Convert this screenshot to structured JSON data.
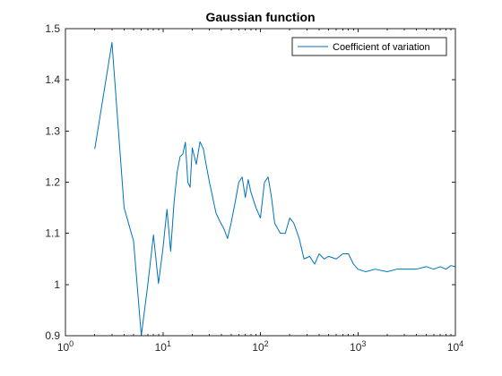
{
  "chart_data": {
    "type": "line",
    "title": "Gaussian function",
    "xlabel": "",
    "ylabel": "",
    "xscale": "log",
    "xlim": [
      1,
      10000
    ],
    "ylim": [
      0.9,
      1.5
    ],
    "x_ticks": [
      1,
      10,
      100,
      1000,
      10000
    ],
    "x_tick_labels": [
      {
        "base": "10",
        "exp": "0"
      },
      {
        "base": "10",
        "exp": "1"
      },
      {
        "base": "10",
        "exp": "2"
      },
      {
        "base": "10",
        "exp": "3"
      },
      {
        "base": "10",
        "exp": "4"
      }
    ],
    "y_ticks": [
      0.9,
      1,
      1.1,
      1.2,
      1.3,
      1.4,
      1.5
    ],
    "y_tick_labels": [
      "0.9",
      "1",
      "1.1",
      "1.2",
      "1.3",
      "1.4",
      "1.5"
    ],
    "grid": false,
    "legend_position": "top-right",
    "series": [
      {
        "name": "Coefficient of variation",
        "color": "#0072BD",
        "x": [
          2,
          3,
          4,
          5,
          6,
          7,
          8,
          9,
          10,
          11,
          12,
          13,
          14,
          15,
          16,
          17,
          18,
          19,
          20,
          22,
          24,
          26,
          28,
          30,
          32,
          35,
          38,
          42,
          46,
          50,
          55,
          60,
          65,
          70,
          75,
          80,
          90,
          100,
          110,
          120,
          130,
          140,
          160,
          180,
          200,
          220,
          250,
          280,
          320,
          360,
          400,
          450,
          500,
          600,
          700,
          800,
          900,
          1000,
          1200,
          1500,
          2000,
          2500,
          3000,
          4000,
          5000,
          6000,
          7000,
          8000,
          9000,
          10000
        ],
        "y": [
          1.265,
          1.473,
          1.15,
          1.085,
          0.9,
          1.0,
          1.097,
          1.002,
          1.07,
          1.147,
          1.065,
          1.16,
          1.22,
          1.25,
          1.255,
          1.278,
          1.2,
          1.19,
          1.267,
          1.235,
          1.279,
          1.265,
          1.23,
          1.2,
          1.175,
          1.14,
          1.125,
          1.11,
          1.09,
          1.12,
          1.16,
          1.2,
          1.21,
          1.17,
          1.205,
          1.18,
          1.15,
          1.13,
          1.2,
          1.21,
          1.17,
          1.12,
          1.1,
          1.1,
          1.13,
          1.12,
          1.09,
          1.05,
          1.055,
          1.04,
          1.06,
          1.05,
          1.055,
          1.05,
          1.06,
          1.06,
          1.04,
          1.03,
          1.025,
          1.03,
          1.025,
          1.03,
          1.03,
          1.03,
          1.035,
          1.03,
          1.035,
          1.03,
          1.037,
          1.035
        ]
      }
    ]
  }
}
